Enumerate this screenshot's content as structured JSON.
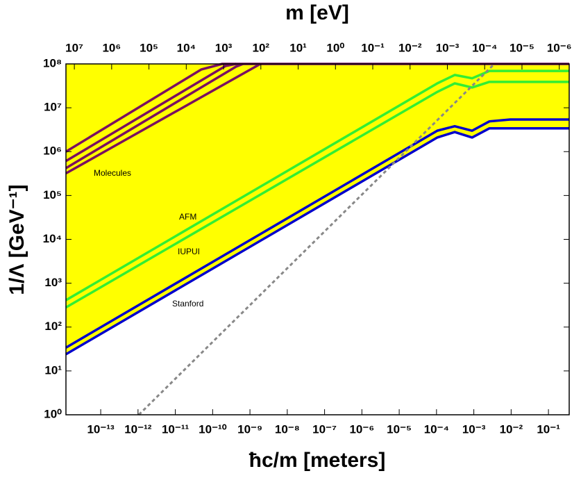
{
  "chart_data": {
    "type": "line",
    "title": "m [eV]",
    "x_label": "ħc/m [meters]",
    "y_label": "1/Λ [GeV⁻¹]",
    "xscale": "log",
    "yscale": "log",
    "xlim": [
      1.17e-14,
      0.36
    ],
    "xticks": [
      {
        "value": 1e-13,
        "label": "10⁻¹³"
      },
      {
        "value": 1e-12,
        "label": "10⁻¹²"
      },
      {
        "value": 1e-11,
        "label": "10⁻¹¹"
      },
      {
        "value": 1e-10,
        "label": "10⁻¹⁰"
      },
      {
        "value": 1e-09,
        "label": "10⁻⁹"
      },
      {
        "value": 1e-08,
        "label": "10⁻⁸"
      },
      {
        "value": 1e-07,
        "label": "10⁻⁷"
      },
      {
        "value": 1e-06,
        "label": "10⁻⁶"
      },
      {
        "value": 1e-05,
        "label": "10⁻⁵"
      },
      {
        "value": 0.0001,
        "label": "10⁻⁴"
      },
      {
        "value": 0.001,
        "label": "10⁻³"
      },
      {
        "value": 0.01,
        "label": "10⁻²"
      },
      {
        "value": 0.1,
        "label": "10⁻¹"
      }
    ],
    "x2lim": [
      16800000.0,
      5.42e-07
    ],
    "x2ticks": [
      {
        "value": 10000000.0,
        "label": "10⁷"
      },
      {
        "value": 1000000.0,
        "label": "10⁶"
      },
      {
        "value": 100000.0,
        "label": "10⁵"
      },
      {
        "value": 10000.0,
        "label": "10⁴"
      },
      {
        "value": 1000.0,
        "label": "10³"
      },
      {
        "value": 100.0,
        "label": "10²"
      },
      {
        "value": 10.0,
        "label": "10¹"
      },
      {
        "value": 1,
        "label": "10⁰"
      },
      {
        "value": 0.1,
        "label": "10⁻¹"
      },
      {
        "value": 0.01,
        "label": "10⁻²"
      },
      {
        "value": 0.001,
        "label": "10⁻³"
      },
      {
        "value": 0.0001,
        "label": "10⁻⁴"
      },
      {
        "value": 1e-05,
        "label": "10⁻⁵"
      },
      {
        "value": 1e-06,
        "label": "10⁻⁶"
      }
    ],
    "ylim": [
      1,
      100000000.0
    ],
    "yticks": [
      {
        "value": 1,
        "label": "10⁰"
      },
      {
        "value": 10,
        "label": "10¹"
      },
      {
        "value": 100,
        "label": "10²"
      },
      {
        "value": 1000,
        "label": "10³"
      },
      {
        "value": 10000,
        "label": "10⁴"
      },
      {
        "value": 100000,
        "label": "10⁵"
      },
      {
        "value": 1000000,
        "label": "10⁶"
      },
      {
        "value": 10000000,
        "label": "10⁷"
      },
      {
        "value": 100000000,
        "label": "10⁸"
      }
    ],
    "region_color": "#ffff00",
    "series": [
      {
        "color": "#0000cc",
        "x": [
          1.17e-14,
          0.000105,
          0.000308,
          0.0009,
          0.00262,
          0.36
        ],
        "values": [
          24,
          2100000.0,
          2800000.0,
          2100000.0,
          3400000.0,
          3400000.0
        ]
      },
      {
        "color": "#0000cc",
        "x": [
          1.17e-14,
          0.000105,
          0.000308,
          0.0009,
          0.00262,
          0.0095,
          0.36
        ],
        "values": [
          34,
          3000000.0,
          3800000.0,
          3000000.0,
          4900000.0,
          5400000.0,
          5400000.0
        ]
      },
      {
        "color": "#33ee33",
        "x": [
          1.17e-14,
          0.000105,
          0.000308,
          0.0009,
          0.00262,
          0.36
        ],
        "values": [
          280,
          23000000.0,
          36000000.0,
          29000000.0,
          39000000.0,
          39000000.0
        ]
      },
      {
        "color": "#33ee33",
        "x": [
          1.17e-14,
          0.000105,
          0.000308,
          0.0009,
          0.00262,
          0.36
        ],
        "values": [
          410,
          36000000.0,
          56000000.0,
          47000000.0,
          69000000.0,
          69000000.0
        ]
      },
      {
        "color": "#7a1060",
        "x": [
          1.17e-14,
          5e-11,
          1.8e-10,
          0.36
        ],
        "values": [
          1000000.0,
          75000000.0,
          100000000.0,
          100000000.0
        ]
      },
      {
        "color": "#7a1060",
        "x": [
          1.17e-14,
          2.23e-10,
          4.25e-10
        ],
        "values": [
          610000.0,
          90000000.0,
          100000000.0
        ]
      },
      {
        "color": "#7a1060",
        "x": [
          1.17e-14,
          4.25e-10,
          6.52e-10
        ],
        "values": [
          420000.0,
          87000000.0,
          100000000.0
        ]
      },
      {
        "color": "#7a1060",
        "x": [
          1.17e-14,
          1.9e-09
        ],
        "values": [
          320000.0,
          100000000.0
        ]
      },
      {
        "color": "#888888",
        "dashed": true,
        "x": [
          1.05e-12,
          0.00354
        ],
        "values": [
          1,
          100000000.0
        ]
      }
    ],
    "annotations": [
      "Molecules",
      "AFM",
      "IUPUI",
      "Stanford"
    ]
  }
}
